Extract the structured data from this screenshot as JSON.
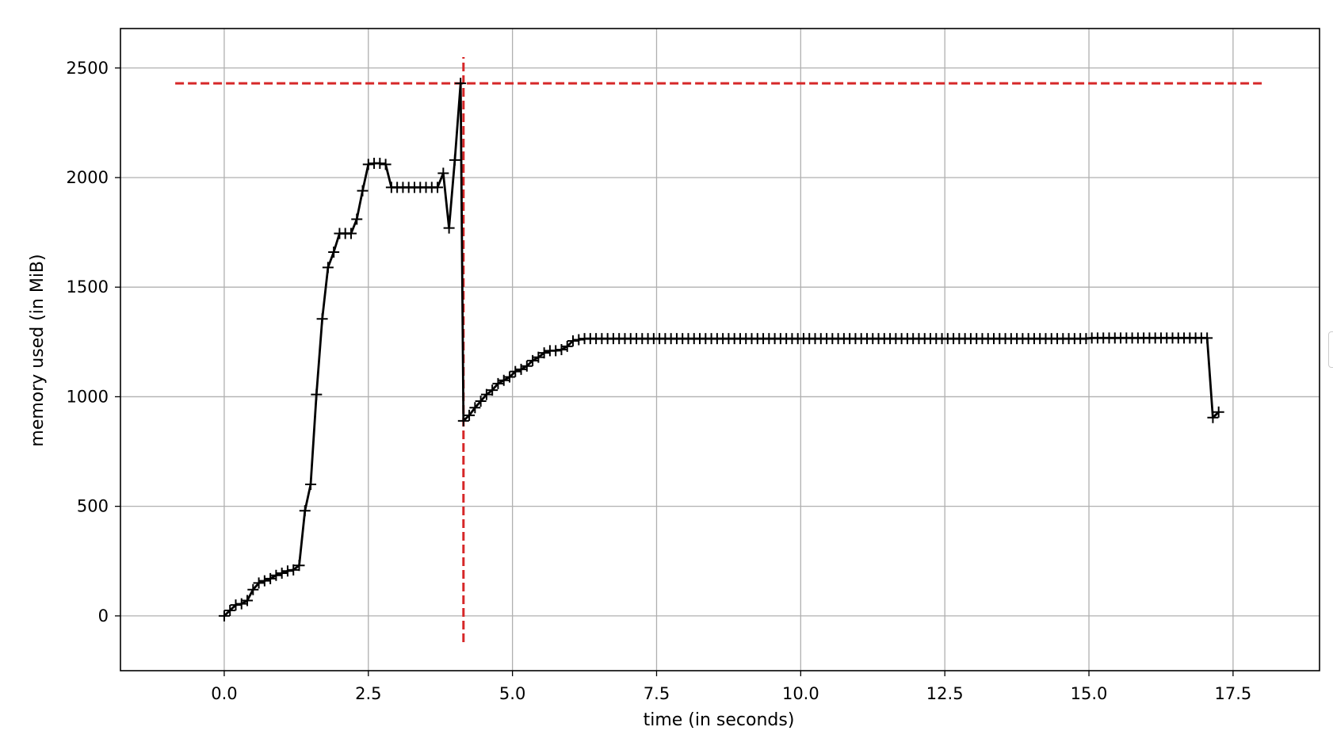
{
  "chart_data": {
    "type": "line",
    "title": "",
    "xlabel": "time (in seconds)",
    "ylabel": "memory used (in MiB)",
    "xlim": [
      -1.8,
      19.0
    ],
    "ylim": [
      -250,
      2680
    ],
    "grid": true,
    "x_ticks": [
      0.0,
      2.5,
      5.0,
      7.5,
      10.0,
      12.5,
      15.0,
      17.5
    ],
    "x_tick_labels": [
      "0.0",
      "2.5",
      "5.0",
      "7.5",
      "10.0",
      "12.5",
      "15.0",
      "17.5"
    ],
    "y_ticks": [
      0,
      500,
      1000,
      1500,
      2000,
      2500
    ],
    "y_tick_labels": [
      "0",
      "500",
      "1000",
      "1500",
      "2000",
      "2500"
    ],
    "colors": {
      "series": "#000000",
      "peak_marker": "#d62728",
      "grid": "#b0b0b0"
    },
    "series": [
      {
        "marker": "plus",
        "x": [
          0.0,
          0.1,
          0.2,
          0.3,
          0.4,
          0.5,
          0.6,
          0.7,
          0.8,
          0.9,
          1.0,
          1.1,
          1.2,
          1.3,
          1.4,
          1.5,
          1.6,
          1.7,
          1.8,
          1.9,
          2.0,
          2.1,
          2.2,
          2.3,
          2.4,
          2.5,
          2.6,
          2.7,
          2.8,
          2.9,
          3.0,
          3.1,
          3.2,
          3.3,
          3.4,
          3.5,
          3.6,
          3.7,
          3.8,
          3.9,
          4.0,
          4.1,
          4.15,
          4.25,
          4.35,
          4.45,
          4.55,
          4.65,
          4.75,
          4.85,
          4.95,
          5.05,
          5.15,
          5.25,
          5.35,
          5.45,
          5.55,
          5.65,
          5.75,
          5.85,
          5.95,
          6.05,
          6.15,
          6.25,
          6.35,
          6.45,
          6.55,
          6.65,
          6.75,
          6.85,
          6.95,
          7.05,
          7.15,
          7.25,
          7.35,
          7.45,
          7.55,
          7.65,
          7.75,
          7.85,
          7.95,
          8.05,
          8.15,
          8.25,
          8.35,
          8.45,
          8.55,
          8.65,
          8.75,
          8.85,
          8.95,
          9.05,
          9.15,
          9.25,
          9.35,
          9.45,
          9.55,
          9.65,
          9.75,
          9.85,
          9.95,
          10.05,
          10.15,
          10.25,
          10.35,
          10.45,
          10.55,
          10.65,
          10.75,
          10.85,
          10.95,
          11.05,
          11.15,
          11.25,
          11.35,
          11.45,
          11.55,
          11.65,
          11.75,
          11.85,
          11.95,
          12.05,
          12.15,
          12.25,
          12.35,
          12.45,
          12.55,
          12.65,
          12.75,
          12.85,
          12.95,
          13.05,
          13.15,
          13.25,
          13.35,
          13.45,
          13.55,
          13.65,
          13.75,
          13.85,
          13.95,
          14.05,
          14.15,
          14.25,
          14.35,
          14.45,
          14.55,
          14.65,
          14.75,
          14.85,
          14.95,
          15.05,
          15.15,
          15.25,
          15.35,
          15.45,
          15.55,
          15.65,
          15.75,
          15.85,
          15.95,
          16.05,
          16.15,
          16.25,
          16.35,
          16.45,
          16.55,
          16.65,
          16.75,
          16.85,
          16.95,
          17.05,
          17.15,
          17.25
        ],
        "y": [
          0,
          25,
          50,
          55,
          70,
          120,
          150,
          160,
          170,
          185,
          195,
          205,
          210,
          230,
          480,
          600,
          1010,
          1355,
          1590,
          1660,
          1745,
          1745,
          1745,
          1810,
          1940,
          2060,
          2065,
          2065,
          2060,
          1955,
          1955,
          1955,
          1955,
          1955,
          1955,
          1955,
          1955,
          1955,
          2020,
          1770,
          2080,
          2430,
          890,
          915,
          950,
          980,
          1010,
          1030,
          1060,
          1075,
          1090,
          1115,
          1125,
          1140,
          1165,
          1180,
          1200,
          1210,
          1210,
          1215,
          1230,
          1255,
          1260,
          1265,
          1265,
          1265,
          1265,
          1265,
          1265,
          1265,
          1265,
          1265,
          1265,
          1265,
          1265,
          1265,
          1265,
          1265,
          1265,
          1265,
          1265,
          1265,
          1265,
          1265,
          1265,
          1265,
          1265,
          1265,
          1265,
          1265,
          1265,
          1265,
          1265,
          1265,
          1265,
          1265,
          1265,
          1265,
          1265,
          1265,
          1265,
          1265,
          1265,
          1265,
          1265,
          1265,
          1265,
          1265,
          1265,
          1265,
          1265,
          1265,
          1265,
          1265,
          1265,
          1265,
          1265,
          1265,
          1265,
          1265,
          1265,
          1265,
          1265,
          1265,
          1265,
          1265,
          1265,
          1265,
          1265,
          1265,
          1265,
          1265,
          1265,
          1265,
          1265,
          1265,
          1265,
          1265,
          1265,
          1265,
          1265,
          1265,
          1265,
          1265,
          1265,
          1265,
          1265,
          1265,
          1265,
          1265,
          1265,
          1268,
          1268,
          1268,
          1268,
          1268,
          1268,
          1268,
          1268,
          1268,
          1268,
          1268,
          1268,
          1268,
          1268,
          1268,
          1268,
          1268,
          1268,
          1268,
          1268,
          1268,
          905,
          930
        ]
      }
    ],
    "reference_lines": [
      {
        "orientation": "horizontal",
        "y": 2430,
        "x_from": -0.85,
        "x_to": 18.05,
        "style": "dashed"
      },
      {
        "orientation": "vertical",
        "x": 4.15,
        "y_from": -120,
        "y_to": 2550,
        "style": "dashed"
      }
    ]
  }
}
